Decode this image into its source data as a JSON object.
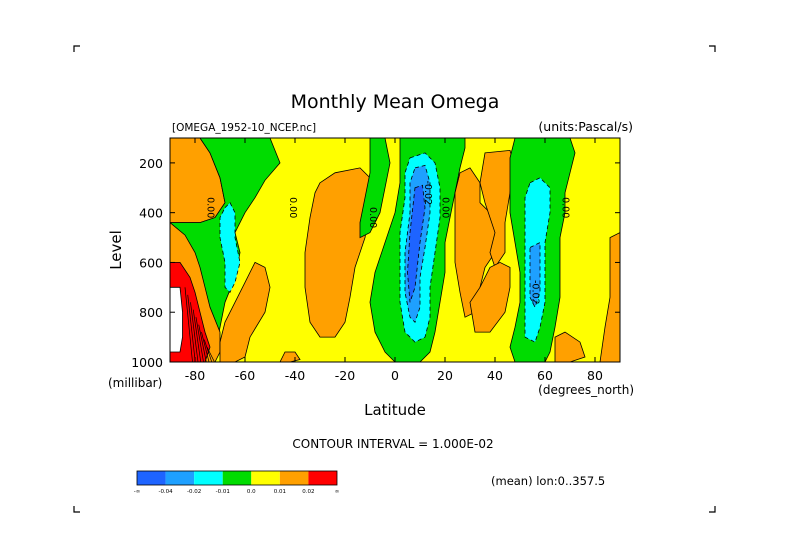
{
  "chart_data": {
    "type": "contour",
    "title": "Monthly Mean Omega",
    "file_label": "[OMEGA_1952-10_NCEP.nc]",
    "units_label": "(units:Pascal/s)",
    "xlabel": "Latitude",
    "x_units": "(degrees_north)",
    "ylabel": "Level",
    "y_units": "(millibar)",
    "xlim": [
      -90,
      90
    ],
    "ylim": [
      1000,
      100
    ],
    "x_ticks": [
      -80,
      -60,
      -40,
      -20,
      0,
      20,
      40,
      60,
      80
    ],
    "y_ticks": [
      200,
      400,
      600,
      800,
      1000
    ],
    "contour_interval_label": "CONTOUR INTERVAL = 1.000E-02",
    "footer_label": "(mean) lon:0..357.5",
    "colorbar": {
      "colors": [
        "#1e64ff",
        "#1ea0ff",
        "#00ffff",
        "#00dc00",
        "#ffff00",
        "#ffa000",
        "#ff0000"
      ],
      "labels": [
        "-∞",
        "-0.04",
        "-0.02",
        "-0.01",
        "0.0",
        "0.01",
        "0.02",
        "∞"
      ]
    },
    "contour_labels": [
      {
        "text": "0.00",
        "lat": -75,
        "lev": 380
      },
      {
        "text": "0.00",
        "lat": -42,
        "lev": 380
      },
      {
        "text": "0.00",
        "lat": -10,
        "lev": 420
      },
      {
        "text": "-0.02",
        "lat": 12,
        "lev": 320
      },
      {
        "text": "0.00",
        "lat": 19,
        "lev": 380
      },
      {
        "text": "0.00",
        "lat": 67,
        "lev": 380
      },
      {
        "text": "-0.02",
        "lat": 55,
        "lev": 720
      }
    ],
    "regions": [
      {
        "level": "0.01",
        "polygon": [
          [
            -90,
            100
          ],
          [
            -78,
            100
          ],
          [
            -74,
            160
          ],
          [
            -70,
            260
          ],
          [
            -68,
            360
          ],
          [
            -72,
            420
          ],
          [
            -78,
            440
          ],
          [
            -90,
            440
          ]
        ]
      },
      {
        "level": "-0.01",
        "polygon": [
          [
            -78,
            100
          ],
          [
            -50,
            100
          ],
          [
            -46,
            200
          ],
          [
            -52,
            270
          ],
          [
            -56,
            340
          ],
          [
            -60,
            400
          ],
          [
            -64,
            480
          ],
          [
            -62,
            560
          ],
          [
            -64,
            660
          ],
          [
            -68,
            760
          ],
          [
            -70,
            860
          ],
          [
            -72,
            960
          ],
          [
            -76,
            1000
          ],
          [
            -90,
            1000
          ],
          [
            -90,
            440
          ],
          [
            -78,
            440
          ],
          [
            -72,
            420
          ],
          [
            -68,
            360
          ],
          [
            -70,
            260
          ],
          [
            -74,
            160
          ]
        ]
      },
      {
        "level": "0.01",
        "polygon": [
          [
            -90,
            440
          ],
          [
            -84,
            490
          ],
          [
            -80,
            560
          ],
          [
            -78,
            620
          ],
          [
            -76,
            700
          ],
          [
            -74,
            780
          ],
          [
            -70,
            880
          ],
          [
            -70,
            960
          ],
          [
            -72,
            1000
          ],
          [
            -90,
            1000
          ]
        ]
      },
      {
        "level": "0.02",
        "polygon": [
          [
            -90,
            600
          ],
          [
            -86,
            600
          ],
          [
            -82,
            660
          ],
          [
            -80,
            720
          ],
          [
            -78,
            800
          ],
          [
            -76,
            880
          ],
          [
            -74,
            940
          ],
          [
            -76,
            1000
          ],
          [
            -90,
            1000
          ]
        ]
      },
      {
        "level": "0.0",
        "polygon": [
          [
            -90,
            700
          ],
          [
            -86,
            700
          ],
          [
            -85,
            800
          ],
          [
            -85,
            900
          ],
          [
            -86,
            960
          ],
          [
            -90,
            960
          ]
        ]
      },
      {
        "level": "-0.02",
        "polygon": [
          [
            -68,
            380
          ],
          [
            -66,
            360
          ],
          [
            -64,
            400
          ],
          [
            -64,
            500
          ],
          [
            -62,
            600
          ],
          [
            -64,
            680
          ],
          [
            -66,
            720
          ],
          [
            -68,
            700
          ],
          [
            -68,
            600
          ],
          [
            -70,
            500
          ],
          [
            -70,
            420
          ]
        ]
      },
      {
        "level": "0.01",
        "polygon": [
          [
            -56,
            600
          ],
          [
            -52,
            620
          ],
          [
            -50,
            700
          ],
          [
            -52,
            800
          ],
          [
            -58,
            900
          ],
          [
            -60,
            980
          ],
          [
            -64,
            1000
          ],
          [
            -70,
            1000
          ],
          [
            -70,
            920
          ],
          [
            -68,
            840
          ],
          [
            -64,
            760
          ],
          [
            -60,
            680
          ]
        ]
      },
      {
        "level": "0.01",
        "polygon": [
          [
            -30,
            280
          ],
          [
            -24,
            240
          ],
          [
            -14,
            220
          ],
          [
            -10,
            260
          ],
          [
            -10,
            380
          ],
          [
            -12,
            500
          ],
          [
            -16,
            620
          ],
          [
            -18,
            740
          ],
          [
            -20,
            840
          ],
          [
            -24,
            900
          ],
          [
            -30,
            900
          ],
          [
            -34,
            840
          ],
          [
            -36,
            700
          ],
          [
            -36,
            560
          ],
          [
            -34,
            420
          ],
          [
            -32,
            320
          ]
        ]
      },
      {
        "level": "-0.01",
        "polygon": [
          [
            -10,
            100
          ],
          [
            -4,
            100
          ],
          [
            -2,
            200
          ],
          [
            -4,
            300
          ],
          [
            -6,
            400
          ],
          [
            -10,
            480
          ],
          [
            -14,
            500
          ],
          [
            -14,
            440
          ],
          [
            -12,
            340
          ],
          [
            -10,
            240
          ]
        ]
      },
      {
        "level": "-0.01",
        "polygon": [
          [
            2,
            100
          ],
          [
            28,
            100
          ],
          [
            28,
            140
          ],
          [
            26,
            220
          ],
          [
            24,
            320
          ],
          [
            22,
            420
          ],
          [
            20,
            520
          ],
          [
            20,
            640
          ],
          [
            18,
            760
          ],
          [
            16,
            880
          ],
          [
            14,
            960
          ],
          [
            10,
            1000
          ],
          [
            0,
            1000
          ],
          [
            -4,
            960
          ],
          [
            -8,
            880
          ],
          [
            -10,
            760
          ],
          [
            -8,
            640
          ],
          [
            -4,
            520
          ],
          [
            0,
            400
          ],
          [
            2,
            280
          ],
          [
            2,
            180
          ]
        ]
      },
      {
        "level": "-0.02",
        "polygon": [
          [
            6,
            180
          ],
          [
            12,
            160
          ],
          [
            16,
            200
          ],
          [
            18,
            300
          ],
          [
            18,
            420
          ],
          [
            16,
            560
          ],
          [
            14,
            700
          ],
          [
            14,
            820
          ],
          [
            12,
            900
          ],
          [
            8,
            920
          ],
          [
            4,
            880
          ],
          [
            2,
            760
          ],
          [
            2,
            620
          ],
          [
            2,
            480
          ],
          [
            4,
            340
          ],
          [
            4,
            240
          ]
        ]
      },
      {
        "level": "-0.04",
        "polygon": [
          [
            8,
            220
          ],
          [
            12,
            210
          ],
          [
            14,
            280
          ],
          [
            14,
            400
          ],
          [
            12,
            540
          ],
          [
            10,
            660
          ],
          [
            10,
            780
          ],
          [
            8,
            840
          ],
          [
            6,
            820
          ],
          [
            4,
            720
          ],
          [
            4,
            560
          ],
          [
            6,
            400
          ],
          [
            6,
            280
          ]
        ]
      },
      {
        "level": "0.01",
        "polygon": [
          [
            26,
            240
          ],
          [
            30,
            220
          ],
          [
            34,
            280
          ],
          [
            34,
            360
          ],
          [
            38,
            400
          ],
          [
            40,
            460
          ],
          [
            40,
            560
          ],
          [
            36,
            620
          ],
          [
            34,
            700
          ],
          [
            32,
            800
          ],
          [
            28,
            820
          ],
          [
            26,
            720
          ],
          [
            24,
            600
          ],
          [
            24,
            440
          ],
          [
            24,
            320
          ]
        ]
      },
      {
        "level": "0.01",
        "polygon": [
          [
            36,
            160
          ],
          [
            46,
            150
          ],
          [
            48,
            220
          ],
          [
            46,
            320
          ],
          [
            44,
            440
          ],
          [
            44,
            560
          ],
          [
            40,
            620
          ],
          [
            38,
            560
          ],
          [
            40,
            480
          ],
          [
            38,
            420
          ],
          [
            36,
            360
          ],
          [
            34,
            280
          ]
        ]
      },
      {
        "level": "0.01",
        "polygon": [
          [
            30,
            760
          ],
          [
            34,
            700
          ],
          [
            38,
            620
          ],
          [
            42,
            600
          ],
          [
            46,
            620
          ],
          [
            46,
            700
          ],
          [
            44,
            800
          ],
          [
            38,
            880
          ],
          [
            32,
            880
          ]
        ]
      },
      {
        "level": "-0.01",
        "polygon": [
          [
            48,
            100
          ],
          [
            70,
            100
          ],
          [
            72,
            160
          ],
          [
            70,
            240
          ],
          [
            68,
            320
          ],
          [
            68,
            400
          ],
          [
            66,
            500
          ],
          [
            66,
            620
          ],
          [
            66,
            740
          ],
          [
            64,
            860
          ],
          [
            62,
            960
          ],
          [
            60,
            1000
          ],
          [
            48,
            1000
          ],
          [
            46,
            940
          ],
          [
            48,
            860
          ],
          [
            50,
            760
          ],
          [
            50,
            640
          ],
          [
            48,
            520
          ],
          [
            46,
            400
          ],
          [
            46,
            280
          ],
          [
            46,
            180
          ]
        ]
      },
      {
        "level": "-0.02",
        "polygon": [
          [
            54,
            280
          ],
          [
            58,
            260
          ],
          [
            62,
            300
          ],
          [
            62,
            400
          ],
          [
            60,
            520
          ],
          [
            60,
            640
          ],
          [
            60,
            760
          ],
          [
            58,
            860
          ],
          [
            56,
            920
          ],
          [
            52,
            900
          ],
          [
            52,
            800
          ],
          [
            52,
            680
          ],
          [
            52,
            560
          ],
          [
            52,
            440
          ],
          [
            52,
            340
          ]
        ]
      },
      {
        "level": "-0.04",
        "polygon": [
          [
            54,
            540
          ],
          [
            58,
            520
          ],
          [
            58,
            620
          ],
          [
            58,
            720
          ],
          [
            56,
            780
          ],
          [
            54,
            740
          ],
          [
            54,
            640
          ]
        ]
      },
      {
        "level": "0.01",
        "polygon": [
          [
            64,
            900
          ],
          [
            68,
            880
          ],
          [
            74,
            920
          ],
          [
            76,
            980
          ],
          [
            70,
            1000
          ],
          [
            64,
            1000
          ]
        ]
      },
      {
        "level": "0.01",
        "polygon": [
          [
            86,
            500
          ],
          [
            90,
            480
          ],
          [
            90,
            1000
          ],
          [
            82,
            1000
          ],
          [
            84,
            860
          ],
          [
            86,
            740
          ],
          [
            86,
            620
          ]
        ]
      },
      {
        "level": "0.01",
        "polygon": [
          [
            -44,
            960
          ],
          [
            -40,
            960
          ],
          [
            -38,
            990
          ],
          [
            -42,
            1000
          ],
          [
            -46,
            1000
          ]
        ]
      }
    ]
  }
}
